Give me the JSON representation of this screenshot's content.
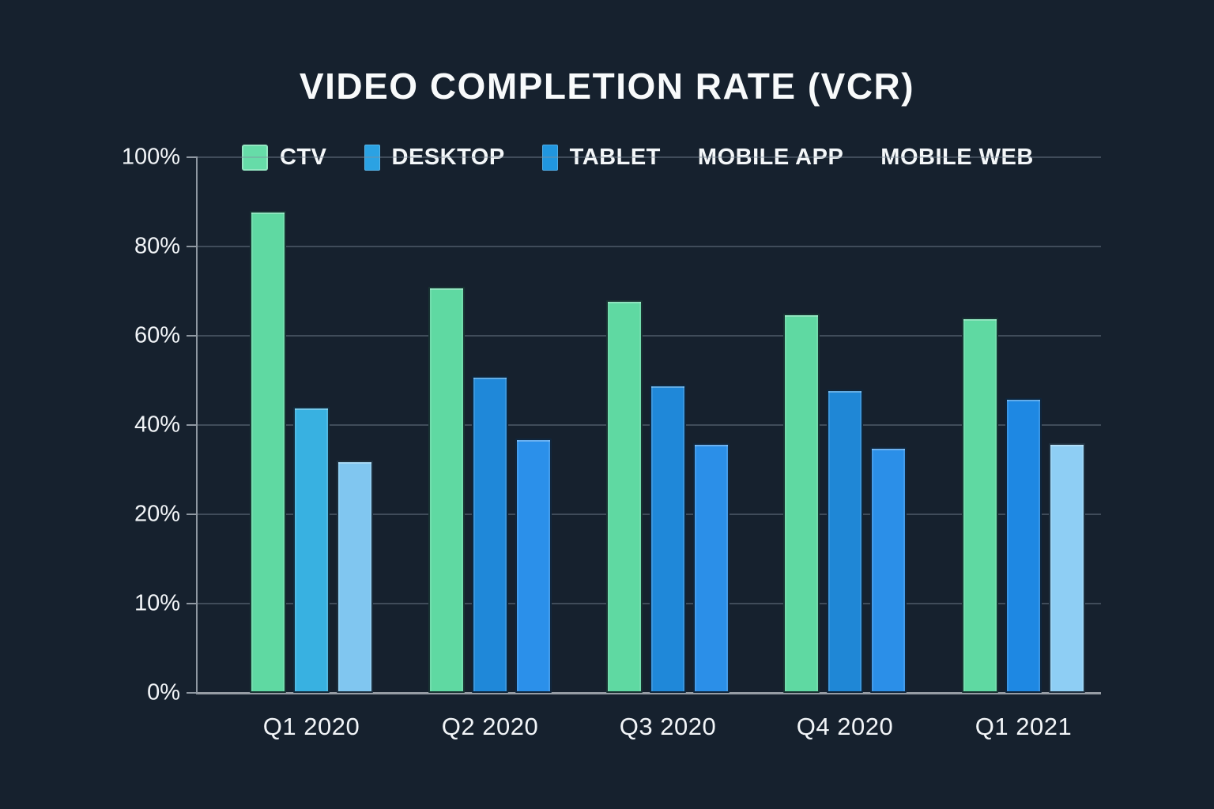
{
  "title": "VIDEO COMPLETION RATE (VCR)",
  "colors": {
    "background": "#16212e",
    "text": "#f7f9fa",
    "gridline": "#808f9e",
    "axis": "#8f98a2",
    "ctv_green": "#5fd9a2",
    "desktop_blue": "#1f88d9",
    "tablet_blue": "#2b90ea",
    "light_sky_blue": "#84c8f1"
  },
  "legend": {
    "items": [
      {
        "label": "CTV",
        "swatch": "square",
        "color": "#66dca8"
      },
      {
        "label": "DESKTOP",
        "swatch": "bar",
        "color": "#2ba2e3"
      },
      {
        "label": "TABLET",
        "swatch": "bar",
        "color": "#2196df"
      },
      {
        "label": "MOBILE APP",
        "swatch": "none",
        "color": ""
      },
      {
        "label": "MOBILE WEB",
        "swatch": "none",
        "color": ""
      }
    ]
  },
  "chart_data": {
    "type": "bar",
    "title": "VIDEO COMPLETION RATE (VCR)",
    "categories": [
      "Q1 2020",
      "Q2 2020",
      "Q3 2020",
      "Q4 2020",
      "Q1 2021"
    ],
    "series": [
      {
        "name": "CTV",
        "values": [
          88,
          71,
          68,
          65,
          64
        ],
        "colors": [
          "#5fd9a2",
          "#5fd9a2",
          "#5fd9a2",
          "#5fd9a2",
          "#5fd9a2"
        ]
      },
      {
        "name": "DESKTOP",
        "values": [
          44,
          51,
          49,
          48,
          46
        ],
        "colors": [
          "#38b1e1",
          "#1f88d9",
          "#1f88d9",
          "#1f87d6",
          "#1e88e3"
        ]
      },
      {
        "name": "TABLET",
        "values": [
          32,
          37,
          36,
          35,
          36
        ],
        "colors": [
          "#80c6f0",
          "#2b90ea",
          "#2b8fe8",
          "#2b8fe8",
          "#8ecef4"
        ]
      }
    ],
    "ylabel": "",
    "xlabel": "",
    "yticks": [
      "100%",
      "80%",
      "60%",
      "40%",
      "20%",
      "10%",
      "0%"
    ],
    "ytick_values": [
      100,
      80,
      60,
      40,
      20,
      10,
      0
    ],
    "y_scale_breakpoints": [
      0,
      10,
      20,
      40,
      60,
      80,
      100
    ],
    "ylim": [
      0,
      100
    ],
    "grid": true,
    "legend_position": "top"
  }
}
